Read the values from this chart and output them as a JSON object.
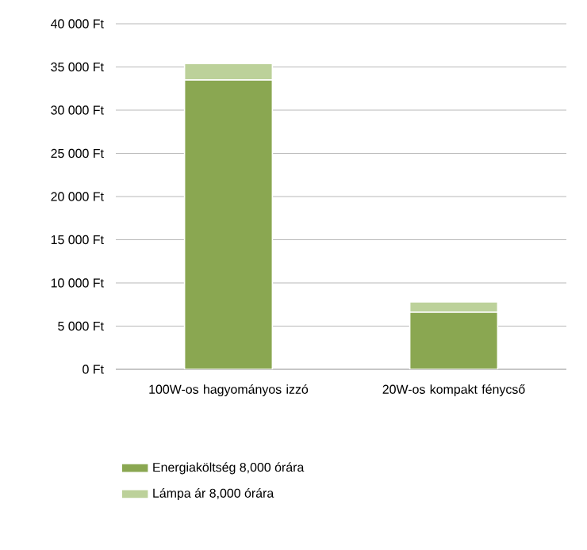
{
  "chart_data": {
    "type": "bar",
    "stacked": true,
    "categories": [
      "100W-os hagyományos izzó",
      "20W-os kompakt fénycső"
    ],
    "series": [
      {
        "name": "Energiaköltség 8,000 órára",
        "color": "#8aa751",
        "values": [
          33500,
          6600
        ]
      },
      {
        "name": "Lámpa ár 8,000 órára",
        "color": "#bcd19a",
        "values": [
          1900,
          1200
        ]
      }
    ],
    "ylim": [
      0,
      40000
    ],
    "yticks": [
      {
        "value": 0,
        "label": "0 Ft"
      },
      {
        "value": 5000,
        "label": "5 000 Ft"
      },
      {
        "value": 10000,
        "label": "10 000 Ft"
      },
      {
        "value": 15000,
        "label": "15 000 Ft"
      },
      {
        "value": 20000,
        "label": "20 000 Ft"
      },
      {
        "value": 25000,
        "label": "25 000 Ft"
      },
      {
        "value": 30000,
        "label": "30 000 Ft"
      },
      {
        "value": 35000,
        "label": "35 000 Ft"
      },
      {
        "value": 40000,
        "label": "40 000 Ft"
      }
    ],
    "grid": "y",
    "legend": "bottom"
  }
}
